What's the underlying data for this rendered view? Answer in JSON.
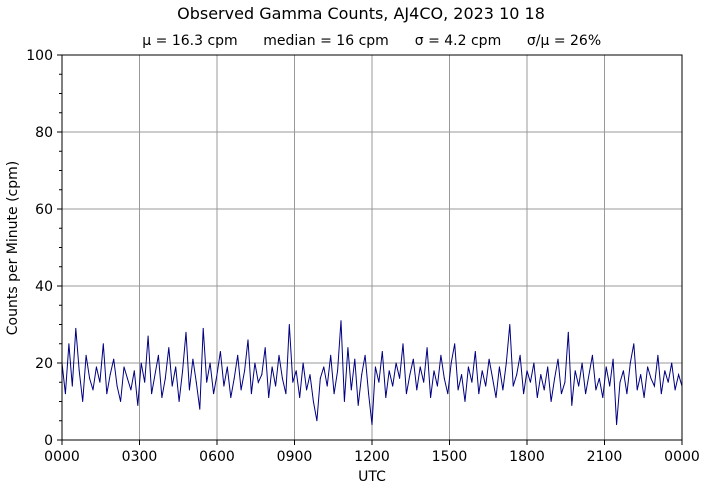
{
  "chart_data": {
    "type": "line",
    "title": "Observed Gamma Counts, AJ4CO, 2023 10 18",
    "subtitle": [
      "μ = 16.3 cpm",
      "median = 16 cpm",
      "σ = 4.2 cpm",
      "σ/μ = 26%"
    ],
    "xlabel": "UTC",
    "ylabel": "Counts per Minute (cpm)",
    "xlim_hours": [
      0,
      24
    ],
    "ylim": [
      0,
      100
    ],
    "xticks": [
      "0000",
      "0300",
      "0600",
      "0900",
      "1200",
      "1500",
      "1800",
      "2100",
      "0000"
    ],
    "yticks": [
      "0",
      "20",
      "40",
      "60",
      "80",
      "100"
    ],
    "grid": true,
    "line_color": "#000080",
    "sample_interval_min": 8,
    "values": [
      20,
      12,
      25,
      14,
      29,
      18,
      10,
      22,
      16,
      13,
      19,
      15,
      25,
      12,
      17,
      21,
      14,
      10,
      19,
      16,
      13,
      18,
      9,
      20,
      15,
      27,
      12,
      17,
      22,
      11,
      16,
      24,
      14,
      19,
      10,
      18,
      28,
      13,
      21,
      15,
      8,
      29,
      15,
      20,
      12,
      17,
      23,
      14,
      19,
      11,
      16,
      22,
      13,
      18,
      26,
      12,
      20,
      15,
      17,
      24,
      11,
      19,
      14,
      22,
      16,
      12,
      30,
      15,
      18,
      11,
      20,
      13,
      17,
      10,
      5,
      16,
      19,
      14,
      22,
      12,
      18,
      31,
      10,
      24,
      13,
      21,
      9,
      17,
      22,
      12,
      4,
      19,
      15,
      23,
      11,
      18,
      14,
      20,
      16,
      25,
      12,
      17,
      21,
      13,
      19,
      15,
      24,
      11,
      18,
      14,
      22,
      16,
      12,
      20,
      25,
      13,
      17,
      10,
      19,
      15,
      23,
      12,
      18,
      14,
      21,
      16,
      11,
      19,
      13,
      20,
      30,
      14,
      17,
      22,
      12,
      18,
      15,
      20,
      11,
      17,
      13,
      19,
      10,
      16,
      21,
      12,
      15,
      28,
      9,
      18,
      14,
      20,
      12,
      17,
      22,
      13,
      16,
      11,
      19,
      14,
      21,
      4,
      15,
      18,
      12,
      20,
      25,
      13,
      17,
      11,
      19,
      16,
      14,
      22,
      12,
      18,
      15,
      20,
      13,
      17,
      14
    ]
  }
}
